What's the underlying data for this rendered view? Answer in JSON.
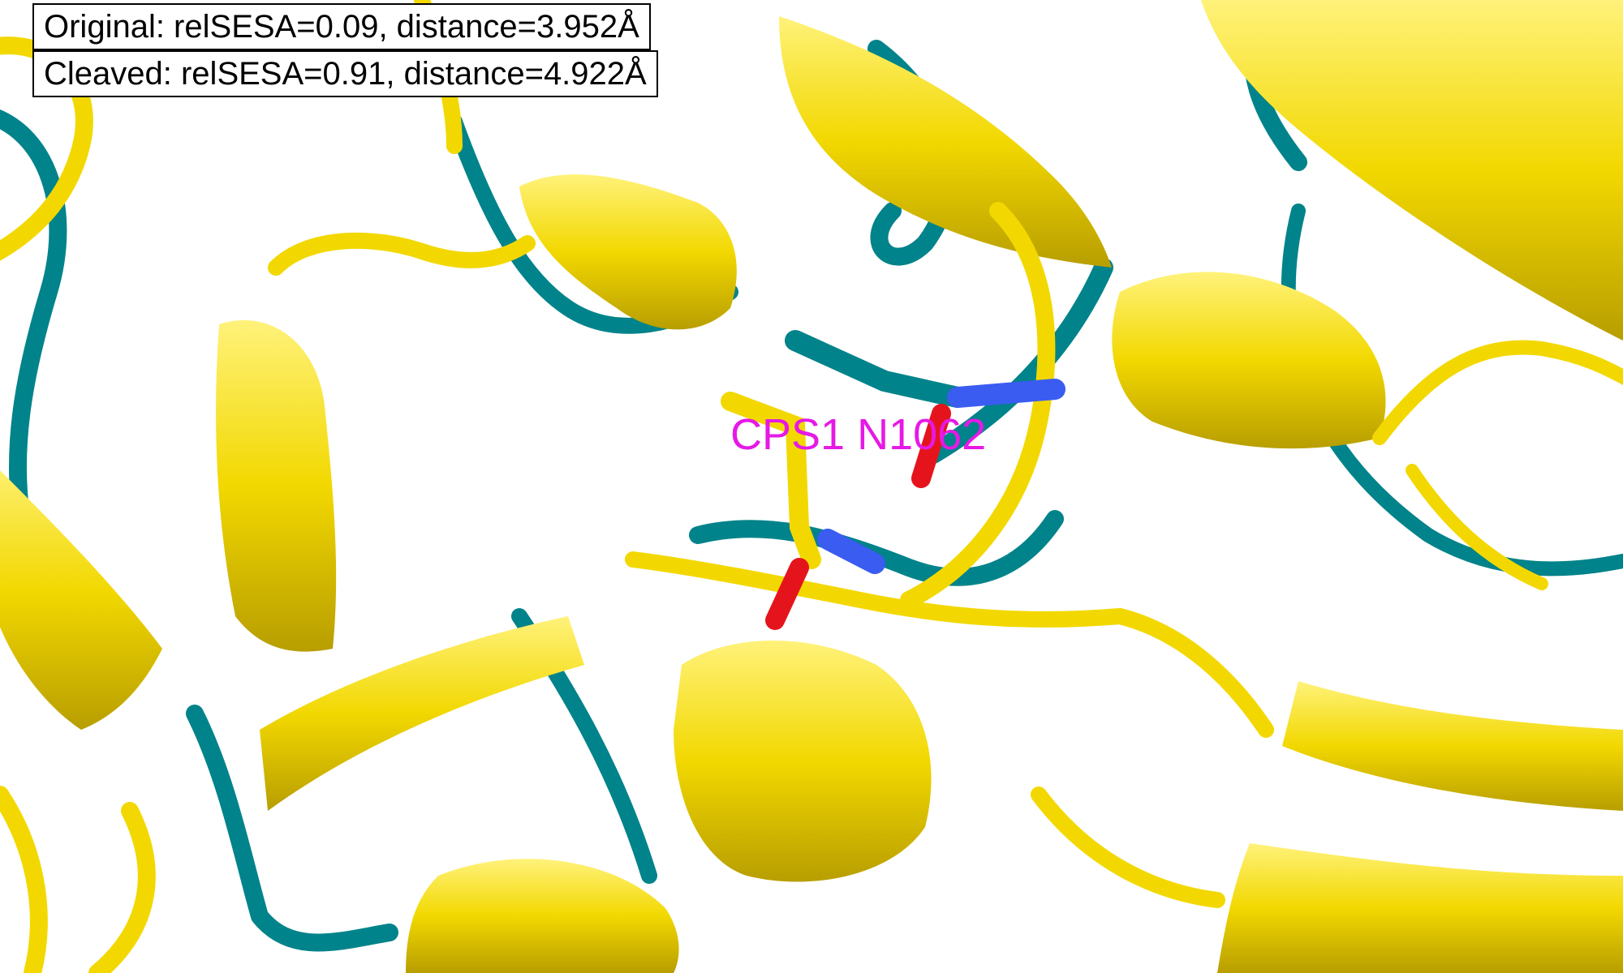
{
  "annotations": {
    "original": "Original: relSESA=0.09, distance=3.952Å",
    "cleaved": "Cleaved: relSESA=0.91, distance=4.922Å",
    "residue_label": "CPS1 N1062"
  },
  "colors": {
    "original_structure": "#007f86",
    "cleaved_structure": "#f7e100",
    "nitrogen": "#3a5cf0",
    "oxygen": "#e5141c",
    "label": "#e619e6",
    "background": "#ffffff"
  }
}
